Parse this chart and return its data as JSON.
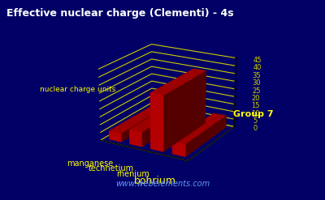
{
  "title": "Effective nuclear charge (Clementi) - 4s",
  "elements": [
    "manganese",
    "technetium",
    "rhenium",
    "bohrium"
  ],
  "values": [
    5.55,
    9.4,
    35.0,
    8.0
  ],
  "ylabel": "nuclear charge units",
  "xlabel": "Group 7",
  "ylim": [
    0,
    45
  ],
  "yticks": [
    0,
    5,
    10,
    15,
    20,
    25,
    30,
    35,
    40,
    45
  ],
  "background_color": "#000066",
  "bar_color": "#cc0000",
  "bar_top_color": "#ff4444",
  "grid_color": "#cccc00",
  "text_color": "#ffff00",
  "title_color": "#ffffff",
  "watermark": "www.webelements.com",
  "watermark_color": "#6699ff"
}
